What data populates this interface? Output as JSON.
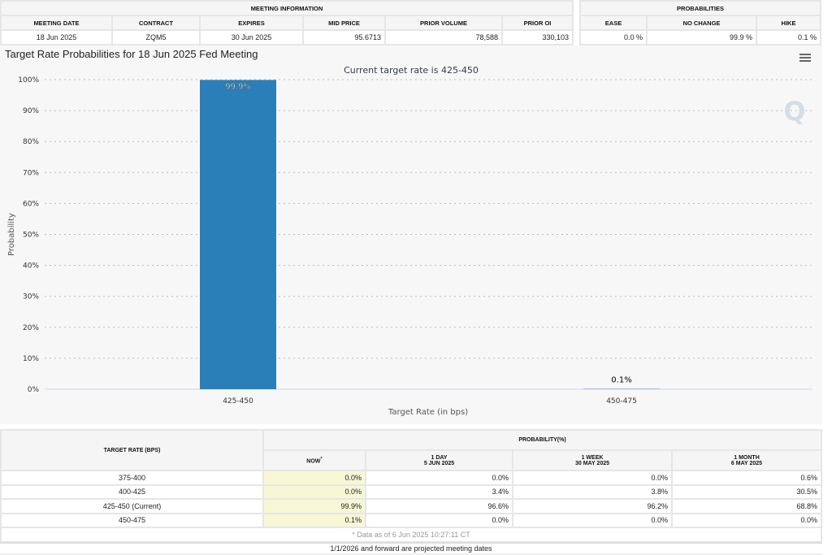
{
  "meeting_info": {
    "title": "MEETING INFORMATION",
    "headers": [
      "MEETING DATE",
      "CONTRACT",
      "EXPIRES",
      "MID PRICE",
      "PRIOR VOLUME",
      "PRIOR OI"
    ],
    "values": [
      "18 Jun 2025",
      "ZQM5",
      "30 Jun 2025",
      "95.6713",
      "78,588",
      "330,103"
    ]
  },
  "probabilities": {
    "title": "PROBABILITIES",
    "headers": [
      "EASE",
      "NO CHANGE",
      "HIKE"
    ],
    "values": [
      "0.0 %",
      "99.9 %",
      "0.1 %"
    ]
  },
  "chart_data": {
    "type": "bar",
    "title": "Target Rate Probabilities for 18 Jun 2025 Fed Meeting",
    "subtitle": "Current target rate is 425-450",
    "categories": [
      "425-450",
      "450-475"
    ],
    "values": [
      99.9,
      0.1
    ],
    "data_labels": [
      "99.9%",
      "0.1%"
    ],
    "xlabel": "Target Rate (in bps)",
    "ylabel": "Probability",
    "ylim": [
      0,
      100
    ],
    "yticks": [
      "0%",
      "10%",
      "20%",
      "30%",
      "40%",
      "50%",
      "60%",
      "70%",
      "80%",
      "90%",
      "100%"
    ],
    "bar_color": "#2a7fb8",
    "grid": true
  },
  "table": {
    "col1_header": "TARGET RATE (BPS)",
    "group_header": "PROBABILITY(%)",
    "columns": [
      {
        "label": "NOW",
        "sup": "*"
      },
      {
        "label": "1 DAY",
        "date": "5 JUN 2025"
      },
      {
        "label": "1 WEEK",
        "date": "30 MAY 2025"
      },
      {
        "label": "1 MONTH",
        "date": "6 MAY 2025"
      }
    ],
    "rows": [
      {
        "rate": "375-400",
        "vals": [
          "0.0%",
          "0.0%",
          "0.0%",
          "0.6%"
        ]
      },
      {
        "rate": "400-425",
        "vals": [
          "0.0%",
          "3.4%",
          "3.8%",
          "30.5%"
        ]
      },
      {
        "rate": "425-450 (Current)",
        "vals": [
          "99.9%",
          "96.6%",
          "96.2%",
          "68.8%"
        ]
      },
      {
        "rate": "450-475",
        "vals": [
          "0.1%",
          "0.0%",
          "0.0%",
          "0.0%"
        ]
      }
    ],
    "note": "* Data as of 6 Jun 2025 10:27:11 CT"
  },
  "footer": "1/1/2026 and forward are projected meeting dates"
}
